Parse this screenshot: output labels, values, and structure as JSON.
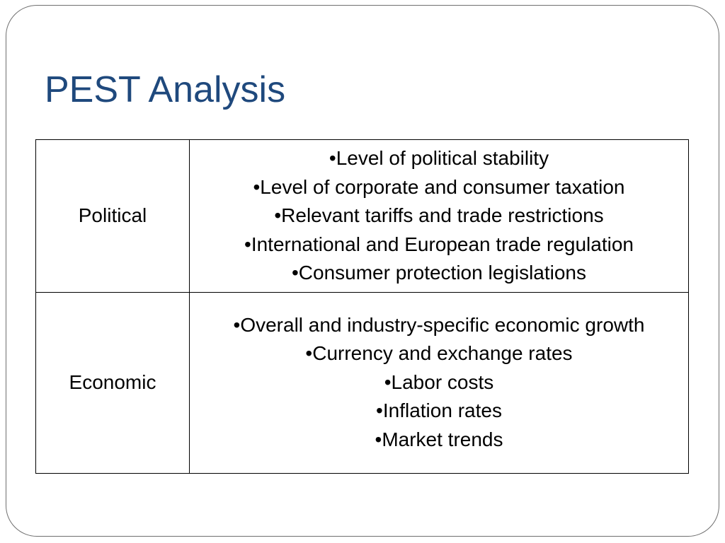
{
  "slide": {
    "title": "PEST Analysis"
  },
  "table": {
    "rows": [
      {
        "factor": "Political",
        "points": [
          "Level of political stability",
          "Level of corporate and consumer taxation",
          "Relevant tariffs and trade restrictions",
          "International and European trade regulation",
          "Consumer protection legislations"
        ]
      },
      {
        "factor": "Economic",
        "points": [
          "Overall and industry-specific economic growth",
          "Currency and exchange rates",
          "Labor costs",
          "Inflation rates",
          "Market trends"
        ]
      }
    ]
  },
  "colors": {
    "title": "#1f497d",
    "frame_border": "#6f6f6f",
    "table_border": "#000000",
    "text": "#000000",
    "background": "#ffffff"
  }
}
